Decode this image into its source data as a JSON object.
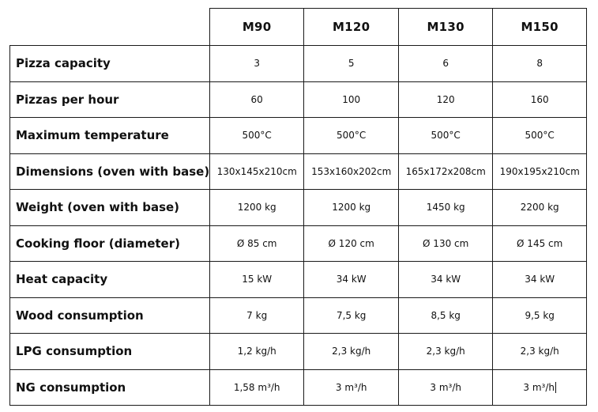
{
  "table": {
    "models": [
      "M90",
      "M120",
      "M130",
      "M150"
    ],
    "rows": [
      {
        "label": "Pizza capacity",
        "values": [
          "3",
          "5",
          "6",
          "8"
        ]
      },
      {
        "label": "Pizzas per hour",
        "values": [
          "60",
          "100",
          "120",
          "160"
        ]
      },
      {
        "label": "Maximum temperature",
        "values": [
          "500°C",
          "500°C",
          "500°C",
          "500°C"
        ]
      },
      {
        "label": "Dimensions (oven with base)",
        "values": [
          "130x145x210cm",
          "153x160x202cm",
          "165x172x208cm",
          "190x195x210cm"
        ]
      },
      {
        "label": "Weight (oven with base)",
        "values": [
          "1200 kg",
          "1200 kg",
          "1450 kg",
          "2200 kg"
        ]
      },
      {
        "label": "Cooking floor (diameter)",
        "values": [
          "Ø 85 cm",
          "Ø 120 cm",
          "Ø 130 cm",
          "Ø 145 cm"
        ]
      },
      {
        "label": "Heat capacity",
        "values": [
          "15 kW",
          "34 kW",
          "34 kW",
          "34 kW"
        ]
      },
      {
        "label": "Wood consumption",
        "values": [
          "7 kg",
          "7,5 kg",
          "8,5 kg",
          "9,5 kg"
        ]
      },
      {
        "label": "LPG consumption",
        "values": [
          "1,2 kg/h",
          "2,3 kg/h",
          "2,3 kg/h",
          "2,3 kg/h"
        ]
      },
      {
        "label": "NG consumption",
        "values": [
          "1,58 m³/h",
          "3 m³/h",
          "3 m³/h",
          "3 m³/h"
        ]
      }
    ]
  },
  "colors": {
    "border": "#1a1a1a",
    "text": "#111111",
    "background": "#ffffff"
  }
}
